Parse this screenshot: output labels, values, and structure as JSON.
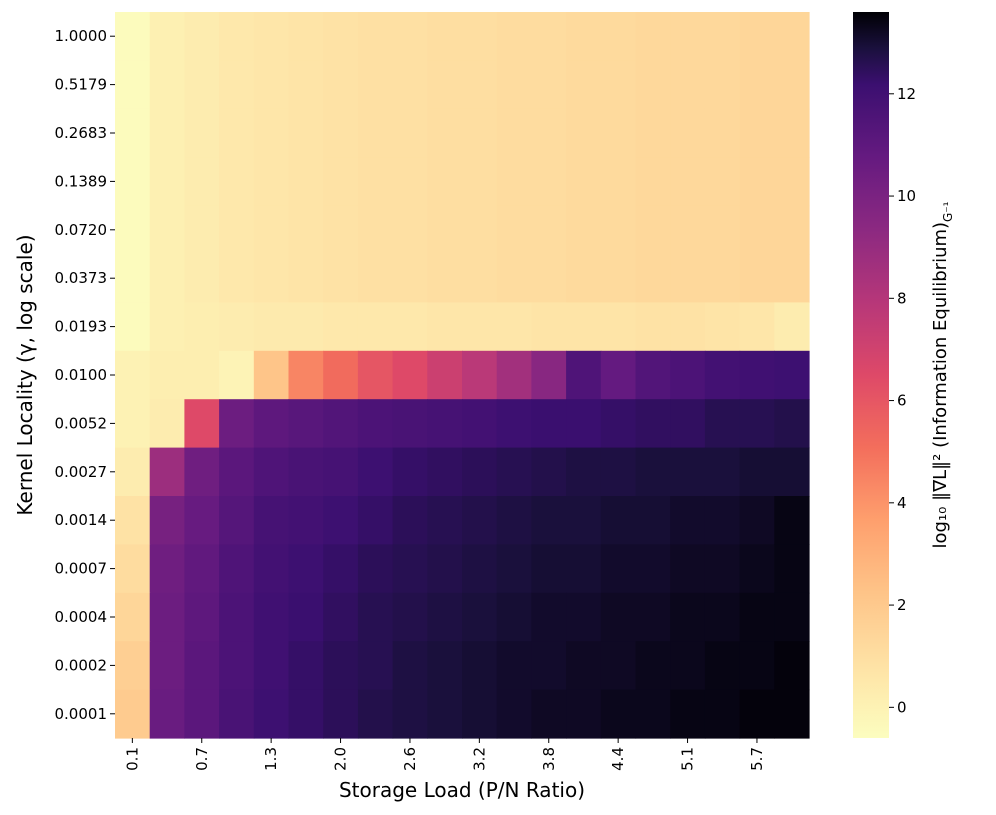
{
  "chart_data": {
    "type": "heatmap",
    "xlabel": "Storage Load (P/N Ratio)",
    "ylabel": "Kernel Locality (γ, log scale)",
    "colorbar_label": "log₁₀ ‖∇L‖² (Information Equilibrium)",
    "colorbar_label_sub": "G⁻¹",
    "colormap": "magma_r",
    "color_range": [
      -0.6,
      13.6
    ],
    "colorbar_ticks": [
      0,
      2,
      4,
      6,
      8,
      10,
      12
    ],
    "x_tick_labels": [
      "0.1",
      "0.7",
      "1.3",
      "2.0",
      "2.6",
      "3.2",
      "3.8",
      "4.4",
      "5.1",
      "5.7"
    ],
    "y_tick_labels": [
      "1.0000",
      "0.5179",
      "0.2683",
      "0.1389",
      "0.0720",
      "0.0373",
      "0.0193",
      "0.0100",
      "0.0052",
      "0.0027",
      "0.0014",
      "0.0007",
      "0.0004",
      "0.0002",
      "0.0001"
    ],
    "n_columns": 20,
    "values": [
      [
        -0.5,
        0.1,
        0.3,
        0.5,
        0.6,
        0.7,
        0.8,
        0.9,
        0.9,
        1.0,
        1.0,
        1.1,
        1.1,
        1.2,
        1.2,
        1.3,
        1.3,
        1.3,
        1.4,
        1.4
      ],
      [
        -0.5,
        0.1,
        0.3,
        0.5,
        0.6,
        0.7,
        0.8,
        0.9,
        0.9,
        1.0,
        1.0,
        1.1,
        1.1,
        1.2,
        1.2,
        1.3,
        1.3,
        1.3,
        1.4,
        1.4
      ],
      [
        -0.5,
        0.1,
        0.3,
        0.5,
        0.6,
        0.7,
        0.8,
        0.9,
        0.9,
        1.0,
        1.0,
        1.1,
        1.1,
        1.2,
        1.2,
        1.3,
        1.3,
        1.3,
        1.4,
        1.4
      ],
      [
        -0.5,
        0.1,
        0.3,
        0.5,
        0.6,
        0.7,
        0.8,
        0.9,
        0.9,
        1.0,
        1.0,
        1.1,
        1.1,
        1.2,
        1.2,
        1.3,
        1.3,
        1.3,
        1.4,
        1.4
      ],
      [
        -0.5,
        0.1,
        0.3,
        0.5,
        0.6,
        0.7,
        0.8,
        0.9,
        0.9,
        1.0,
        1.0,
        1.1,
        1.1,
        1.2,
        1.2,
        1.3,
        1.3,
        1.3,
        1.4,
        1.4
      ],
      [
        -0.5,
        0.1,
        0.3,
        0.5,
        0.6,
        0.7,
        0.8,
        0.9,
        0.9,
        1.0,
        1.0,
        1.1,
        1.1,
        1.2,
        1.2,
        1.3,
        1.3,
        1.3,
        1.4,
        1.4
      ],
      [
        -0.5,
        0.1,
        0.2,
        0.3,
        0.4,
        0.4,
        0.5,
        0.5,
        0.5,
        0.6,
        0.6,
        0.6,
        0.7,
        0.7,
        0.7,
        0.8,
        0.8,
        0.7,
        0.6,
        0.3
      ],
      [
        0.0,
        0.2,
        0.2,
        -0.1,
        2.2,
        4.4,
        5.2,
        6.0,
        6.5,
        7.2,
        7.8,
        8.6,
        9.5,
        11.5,
        10.8,
        11.4,
        11.6,
        11.9,
        12.0,
        12.1
      ],
      [
        0.0,
        0.3,
        6.5,
        10.5,
        11.0,
        11.2,
        11.4,
        11.6,
        11.7,
        11.8,
        11.9,
        12.1,
        12.2,
        12.2,
        12.3,
        12.4,
        12.4,
        12.6,
        12.6,
        12.7
      ],
      [
        0.3,
        8.8,
        10.4,
        11.1,
        11.5,
        11.7,
        11.8,
        12.1,
        12.3,
        12.4,
        12.5,
        12.6,
        12.7,
        12.8,
        12.8,
        12.9,
        12.9,
        12.9,
        13.0,
        13.0
      ],
      [
        0.8,
        10.1,
        10.7,
        11.3,
        11.8,
        11.9,
        12.1,
        12.3,
        12.5,
        12.6,
        12.7,
        12.8,
        12.9,
        12.9,
        13.0,
        13.0,
        13.1,
        13.1,
        13.2,
        13.4
      ],
      [
        1.1,
        10.4,
        10.9,
        11.5,
        11.9,
        12.1,
        12.3,
        12.5,
        12.6,
        12.7,
        12.8,
        12.9,
        13.0,
        13.0,
        13.1,
        13.1,
        13.2,
        13.2,
        13.3,
        13.4
      ],
      [
        1.4,
        10.5,
        11.0,
        11.6,
        12.0,
        12.2,
        12.4,
        12.6,
        12.7,
        12.8,
        12.9,
        13.0,
        13.1,
        13.1,
        13.2,
        13.2,
        13.3,
        13.3,
        13.4,
        13.4
      ],
      [
        1.7,
        10.5,
        11.1,
        11.6,
        12.0,
        12.3,
        12.5,
        12.6,
        12.8,
        12.9,
        13.0,
        13.1,
        13.1,
        13.2,
        13.2,
        13.3,
        13.3,
        13.4,
        13.4,
        13.5
      ],
      [
        1.9,
        10.6,
        11.1,
        11.7,
        12.1,
        12.3,
        12.5,
        12.7,
        12.8,
        12.9,
        13.0,
        13.1,
        13.2,
        13.2,
        13.3,
        13.3,
        13.4,
        13.4,
        13.5,
        13.5
      ]
    ]
  }
}
